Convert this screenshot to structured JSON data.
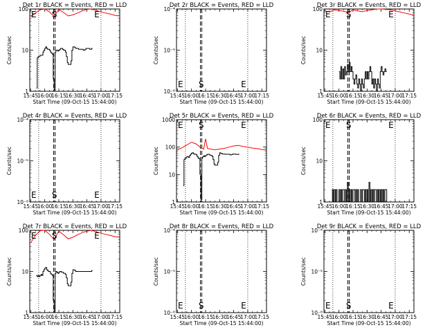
{
  "chart_data": [
    {
      "type": "line",
      "title": "Det 1r  BLACK = Events, RED = LLD",
      "xlabel": "Start Time (09-Oct-15 15:44:00)",
      "ylabel": "Counts/sec",
      "yscale": "log",
      "ylim": [
        1,
        100
      ],
      "xlim": [
        -1,
        95
      ],
      "xticks": [
        0,
        15,
        30,
        45,
        60,
        75,
        90
      ],
      "xtick_labels": [
        "15:45",
        "16:00",
        "16:15",
        "16:30",
        "16:45",
        "17:00",
        "17:15"
      ],
      "ytick_labels": [
        "1",
        "10",
        "100"
      ],
      "markers": {
        "s_label": "S",
        "e_label": "E"
      },
      "series": [
        {
          "name": "Events",
          "color": "#000000",
          "x": [
            6,
            7,
            8,
            9,
            10,
            11,
            12,
            13,
            14,
            15,
            16,
            17,
            18,
            19,
            20,
            21,
            22,
            23,
            24,
            25,
            26,
            27,
            28,
            29,
            30,
            31,
            32,
            33,
            34,
            35,
            36,
            37,
            38,
            39,
            40,
            41,
            42,
            43,
            44,
            45,
            46,
            47,
            48,
            49,
            50,
            51,
            52,
            53,
            54,
            55,
            56,
            57,
            58,
            59,
            60,
            61,
            62,
            63,
            64,
            65,
            66
          ],
          "y": [
            1.2,
            6.5,
            7,
            7,
            7.5,
            7.5,
            7.5,
            9,
            10,
            11,
            12,
            11,
            10.5,
            10.5,
            10,
            9,
            8.5,
            8,
            2,
            1.1,
            9,
            10,
            10,
            9.5,
            10,
            10.5,
            11,
            11,
            10.5,
            10,
            10,
            9,
            7,
            5,
            4.5,
            4.5,
            4.5,
            5.5,
            10,
            12,
            12,
            11.5,
            11,
            11,
            11,
            10.5,
            10.5,
            10.5,
            10.5,
            10.5,
            10,
            10,
            10.5,
            11,
            11,
            11,
            11,
            10.5,
            10.5,
            11,
            11
          ]
        },
        {
          "name": "LLD",
          "color": "#ff0000",
          "x": [
            0,
            5,
            10,
            15,
            20,
            25,
            30,
            35,
            40,
            45,
            50,
            55,
            60,
            65,
            70,
            75,
            80,
            85,
            90,
            94
          ],
          "y": [
            65,
            80,
            96,
            105,
            85,
            66,
            98,
            82,
            68,
            72,
            80,
            90,
            98,
            100,
            92,
            85,
            80,
            75,
            70,
            68
          ]
        }
      ]
    },
    {
      "type": "line",
      "title": "Det 2r  BLACK = Events, RED = LLD",
      "xlabel": "Start Time (09-Oct-15 15:44:00)",
      "ylabel": "Counts/sec",
      "yscale": "log",
      "ylim": [
        1e-06,
        0.0001
      ],
      "xlim": [
        -1,
        95
      ],
      "xticks": [
        0,
        15,
        30,
        45,
        60,
        75,
        90
      ],
      "xtick_labels": [
        "15:45",
        "16:00",
        "16:15",
        "16:30",
        "16:45",
        "17:00",
        "17:15"
      ],
      "ytick_labels": [
        "10⁻⁶",
        "10⁻⁵",
        "10⁻⁴"
      ],
      "markers": {
        "s_label": "S",
        "e_label": "E"
      },
      "series": []
    },
    {
      "type": "line",
      "title": "Det 3r  BLACK = Events, RED = LLD",
      "xlabel": "Start Time (09-Oct-15 15:44:00)",
      "ylabel": "Counts/sec",
      "yscale": "log",
      "ylim": [
        1,
        100
      ],
      "xlim": [
        -1,
        95
      ],
      "xticks": [
        0,
        15,
        30,
        45,
        60,
        75,
        90
      ],
      "xtick_labels": [
        "15:45",
        "16:00",
        "16:15",
        "16:30",
        "16:45",
        "17:00",
        "17:15"
      ],
      "ytick_labels": [
        "1",
        "10",
        "100"
      ],
      "markers": {
        "s_label": "S",
        "e_label": "E"
      },
      "series": [
        {
          "name": "Events",
          "color": "#000000",
          "x": [
            15,
            16,
            17,
            18,
            19,
            20,
            21,
            22,
            23,
            24,
            25,
            26,
            27,
            28,
            29,
            30,
            31,
            32,
            33,
            34,
            35,
            36,
            37,
            38,
            39,
            40,
            41,
            42,
            43,
            44,
            45,
            46,
            47,
            48,
            49,
            50,
            51,
            52,
            53,
            54,
            55,
            56,
            57,
            58,
            59,
            60,
            61,
            62,
            63,
            64,
            65,
            66
          ],
          "y": [
            3,
            2,
            4,
            2,
            3.5,
            2,
            4,
            2.5,
            3,
            4.5,
            3,
            5,
            3,
            4,
            3,
            2,
            1.5,
            2,
            2.5,
            1.5,
            1.2,
            2,
            1.5,
            1,
            2,
            1.5,
            1.2,
            2,
            3,
            2,
            3,
            2,
            3,
            4,
            3,
            1.5,
            2,
            1.2,
            2,
            1.5,
            1,
            2,
            1.5,
            1.2,
            3,
            4,
            3,
            2.5,
            3,
            3.5,
            3,
            3
          ]
        },
        {
          "name": "LLD",
          "color": "#ff0000",
          "x": [
            0,
            5,
            10,
            15,
            20,
            25,
            30,
            35,
            40,
            45,
            50,
            55,
            60,
            65,
            70,
            75,
            80,
            85,
            90,
            94
          ],
          "y": [
            90,
            85,
            95,
            92,
            88,
            82,
            95,
            90,
            86,
            92,
            95,
            100,
            102,
            98,
            96,
            90,
            85,
            80,
            75,
            72
          ]
        }
      ]
    },
    {
      "type": "line",
      "title": "Det 4r  BLACK = Events, RED = LLD",
      "xlabel": "Start Time (09-Oct-15 15:44:00)",
      "ylabel": "Counts/sec",
      "yscale": "log",
      "ylim": [
        1e-06,
        0.0001
      ],
      "xlim": [
        -1,
        95
      ],
      "xticks": [
        0,
        15,
        30,
        45,
        60,
        75,
        90
      ],
      "xtick_labels": [
        "15:45",
        "16:00",
        "16:15",
        "16:30",
        "16:45",
        "17:00",
        "17:15"
      ],
      "ytick_labels": [
        "10⁻⁶",
        "10⁻⁵",
        "10⁻⁴"
      ],
      "markers": {
        "s_label": "S",
        "e_label": "E"
      },
      "series": []
    },
    {
      "type": "line",
      "title": "Det 5r  BLACK = Events, RED = LLD",
      "xlabel": "Start Time (09-Oct-15 15:44:00)",
      "ylabel": "Counts/sec",
      "yscale": "log",
      "ylim": [
        1,
        1000
      ],
      "xlim": [
        -1,
        95
      ],
      "xticks": [
        0,
        15,
        30,
        45,
        60,
        75,
        90
      ],
      "xtick_labels": [
        "15:45",
        "16:00",
        "16:15",
        "16:30",
        "16:45",
        "17:00",
        "17:15"
      ],
      "ytick_labels": [
        "1",
        "10",
        "100",
        "1000"
      ],
      "markers": {
        "s_label": "S",
        "e_label": "E"
      },
      "series": [
        {
          "name": "Events",
          "color": "#000000",
          "x": [
            6,
            7,
            8,
            9,
            10,
            11,
            12,
            13,
            14,
            15,
            16,
            17,
            18,
            19,
            20,
            21,
            22,
            23,
            24,
            25,
            26,
            27,
            28,
            29,
            30,
            31,
            32,
            33,
            34,
            35,
            36,
            37,
            38,
            39,
            40,
            41,
            42,
            43,
            44,
            45,
            46,
            47,
            48,
            49,
            50,
            51,
            52,
            53,
            54,
            55,
            56,
            57,
            58,
            59,
            60,
            61,
            62,
            63,
            64,
            65,
            66
          ],
          "y": [
            4,
            35,
            40,
            40,
            45,
            45,
            42,
            50,
            55,
            60,
            62,
            58,
            55,
            55,
            52,
            45,
            40,
            38,
            10,
            1.2,
            40,
            45,
            48,
            45,
            50,
            52,
            55,
            55,
            52,
            50,
            50,
            45,
            35,
            24,
            22,
            22,
            22,
            28,
            50,
            62,
            60,
            58,
            56,
            56,
            56,
            55,
            55,
            55,
            55,
            55,
            52,
            52,
            54,
            56,
            56,
            56,
            55,
            54,
            54,
            55,
            55
          ]
        },
        {
          "name": "LLD",
          "color": "#ff0000",
          "x": [
            0,
            5,
            10,
            15,
            20,
            25,
            28,
            30,
            32,
            35,
            40,
            45,
            50,
            55,
            60,
            65,
            70,
            75,
            80,
            85,
            90,
            94
          ],
          "y": [
            80,
            95,
            120,
            150,
            130,
            95,
            85,
            200,
            90,
            85,
            80,
            85,
            90,
            100,
            110,
            115,
            105,
            100,
            92,
            88,
            82,
            78
          ]
        }
      ]
    },
    {
      "type": "line",
      "title": "Det 6r  BLACK = Events, RED = LLD",
      "xlabel": "Start Time (09-Oct-15 15:44:00)",
      "ylabel": "Counts/sec",
      "yscale": "log",
      "ylim": [
        1,
        100
      ],
      "xlim": [
        -1,
        95
      ],
      "xticks": [
        0,
        15,
        30,
        45,
        60,
        75,
        90
      ],
      "xtick_labels": [
        "15:45",
        "16:00",
        "16:15",
        "16:30",
        "16:45",
        "17:00",
        "17:15"
      ],
      "ytick_labels": [
        "1",
        "10",
        "100"
      ],
      "markers": {
        "s_label": "S",
        "e_label": "E"
      },
      "series": [
        {
          "name": "Events",
          "color": "#000000",
          "x": [
            7,
            8,
            9,
            10,
            11,
            12,
            13,
            14,
            15,
            16,
            17,
            18,
            19,
            20,
            21,
            22,
            23,
            24,
            25,
            26,
            27,
            28,
            29,
            30,
            31,
            32,
            33,
            34,
            35,
            36,
            37,
            38,
            39,
            40,
            41,
            42,
            43,
            44,
            45,
            46,
            47,
            48,
            49,
            50,
            51,
            52,
            53,
            54,
            55,
            56,
            57,
            58,
            59,
            60,
            61,
            62,
            63,
            64,
            65,
            66
          ],
          "y": [
            1,
            2,
            1,
            2,
            1,
            2,
            1,
            1,
            2,
            1,
            2,
            1,
            2,
            2,
            1,
            2,
            1,
            3,
            1,
            2,
            1,
            2,
            1,
            2,
            2,
            1,
            2,
            1,
            2,
            1,
            1,
            2,
            1,
            2,
            2,
            1,
            2,
            1,
            2,
            1,
            3,
            1,
            2,
            1,
            2,
            1,
            2,
            2,
            1,
            2,
            1,
            2,
            1,
            2,
            1,
            2,
            1,
            2,
            2,
            1
          ]
        }
      ]
    },
    {
      "type": "line",
      "title": "Det 7r  BLACK = Events, RED = LLD",
      "xlabel": "Start Time (09-Oct-15 15:44:00)",
      "ylabel": "Counts/sec",
      "yscale": "log",
      "ylim": [
        1,
        100
      ],
      "xlim": [
        -1,
        95
      ],
      "xticks": [
        0,
        15,
        30,
        45,
        60,
        75,
        90
      ],
      "xtick_labels": [
        "15:45",
        "16:00",
        "16:15",
        "16:30",
        "16:45",
        "17:00",
        "17:15"
      ],
      "ytick_labels": [
        "1",
        "10",
        "100"
      ],
      "markers": {
        "s_label": "S",
        "e_label": "E"
      },
      "series": [
        {
          "name": "Events",
          "color": "#000000",
          "x": [
            6,
            7,
            8,
            9,
            10,
            11,
            12,
            13,
            14,
            15,
            16,
            17,
            18,
            19,
            20,
            21,
            22,
            23,
            24,
            25,
            26,
            27,
            28,
            29,
            30,
            31,
            32,
            33,
            34,
            35,
            36,
            37,
            38,
            39,
            40,
            41,
            42,
            43,
            44,
            45,
            46,
            47,
            48,
            49,
            50,
            51,
            52,
            53,
            54,
            55,
            56,
            57,
            58,
            59,
            60,
            61,
            62,
            63,
            64,
            65,
            66
          ],
          "y": [
            8,
            7.5,
            8,
            7.5,
            8,
            8.5,
            8,
            10,
            11,
            12,
            12.5,
            11,
            10.5,
            10,
            10,
            9,
            8.5,
            8,
            2,
            1.1,
            9,
            10,
            9.5,
            9,
            9.5,
            10,
            10,
            9.5,
            9.5,
            9,
            9,
            8.5,
            7,
            5,
            4.5,
            4.5,
            4.5,
            5.5,
            9,
            11,
            11,
            10.5,
            10,
            10,
            10,
            10,
            10,
            10,
            10,
            10,
            10,
            10,
            10,
            10,
            10,
            10,
            10,
            10,
            10,
            10.5,
            10.5
          ]
        },
        {
          "name": "LLD",
          "color": "#ff0000",
          "x": [
            0,
            5,
            10,
            15,
            20,
            25,
            30,
            35,
            40,
            45,
            50,
            55,
            60,
            65,
            70,
            75,
            80,
            85,
            90,
            94
          ],
          "y": [
            50,
            75,
            98,
            100,
            80,
            60,
            96,
            78,
            62,
            68,
            78,
            88,
            96,
            100,
            92,
            85,
            80,
            75,
            70,
            68
          ]
        }
      ]
    },
    {
      "type": "line",
      "title": "Det 8r  BLACK = Events, RED = LLD",
      "xlabel": "Start Time (09-Oct-15 15:44:00)",
      "ylabel": "Counts/sec",
      "yscale": "log",
      "ylim": [
        1e-06,
        0.0001
      ],
      "xlim": [
        -1,
        95
      ],
      "xticks": [
        0,
        15,
        30,
        45,
        60,
        75,
        90
      ],
      "xtick_labels": [
        "15:45",
        "16:00",
        "16:15",
        "16:30",
        "16:45",
        "17:00",
        "17:15"
      ],
      "ytick_labels": [
        "10⁻⁶",
        "10⁻⁵",
        "10⁻⁴"
      ],
      "markers": {
        "s_label": "S",
        "e_label": "E"
      },
      "series": []
    },
    {
      "type": "line",
      "title": "Det 9r  BLACK = Events, RED = LLD",
      "xlabel": "Start Time (09-Oct-15 15:44:00)",
      "ylabel": "Counts/sec",
      "yscale": "log",
      "ylim": [
        1e-06,
        0.0001
      ],
      "xlim": [
        -1,
        95
      ],
      "xticks": [
        0,
        15,
        30,
        45,
        60,
        75,
        90
      ],
      "xtick_labels": [
        "15:45",
        "16:00",
        "16:15",
        "16:30",
        "16:45",
        "17:00",
        "17:15"
      ],
      "ytick_labels": [
        "10⁻⁶",
        "10⁻⁵",
        "10⁻⁴"
      ],
      "markers": {
        "s_label": "S",
        "e_label": "E"
      },
      "series": []
    }
  ]
}
